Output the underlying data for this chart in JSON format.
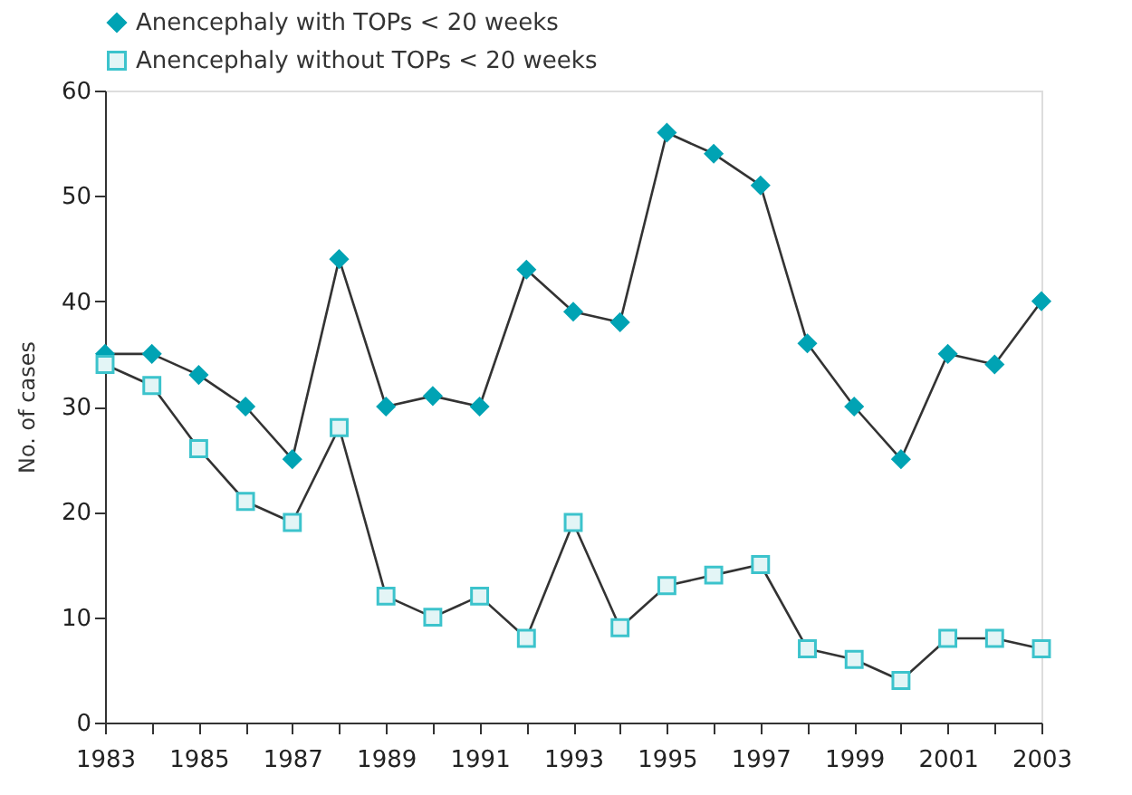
{
  "chart_data": {
    "type": "line",
    "ylabel": "No. of cases",
    "x": [
      1983,
      1984,
      1985,
      1986,
      1987,
      1988,
      1989,
      1990,
      1991,
      1992,
      1993,
      1994,
      1995,
      1996,
      1997,
      1998,
      1999,
      2000,
      2001,
      2002,
      2003
    ],
    "series": [
      {
        "name": "Anencephaly with TOPs < 20 weeks",
        "color": "#00a3b4",
        "marker": "diamond",
        "values": [
          35,
          35,
          33,
          30,
          25,
          44,
          30,
          31,
          30,
          43,
          39,
          38,
          56,
          54,
          51,
          36,
          30,
          25,
          35,
          34,
          40
        ]
      },
      {
        "name": "Anencephaly without TOPs < 20 weeks",
        "color": "#3cc3cc",
        "marker": "square",
        "values": [
          34,
          32,
          26,
          21,
          19,
          28,
          12,
          10,
          12,
          8,
          19,
          9,
          13,
          14,
          15,
          7,
          6,
          4,
          8,
          8,
          7
        ]
      }
    ],
    "xlim": [
      1983,
      2003
    ],
    "xticks": [
      1983,
      {
        "value": 1984,
        "label": null
      },
      1985,
      {
        "value": 1986,
        "label": null
      },
      1987,
      {
        "value": 1988,
        "label": null
      },
      1989,
      {
        "value": 1990,
        "label": null
      },
      1991,
      {
        "value": 1992,
        "label": null
      },
      1993,
      {
        "value": 1994,
        "label": null
      },
      1995,
      {
        "value": 1996,
        "label": null
      },
      1997,
      {
        "value": 1998,
        "label": null
      },
      1999,
      {
        "value": 2000,
        "label": null
      },
      2001,
      {
        "value": 2002,
        "label": null
      },
      2003
    ],
    "ylim": [
      0,
      60
    ],
    "yticks": [
      0,
      10,
      20,
      30,
      40,
      50,
      60
    ],
    "grid": false,
    "legend": "top left",
    "line_style": "solid"
  }
}
